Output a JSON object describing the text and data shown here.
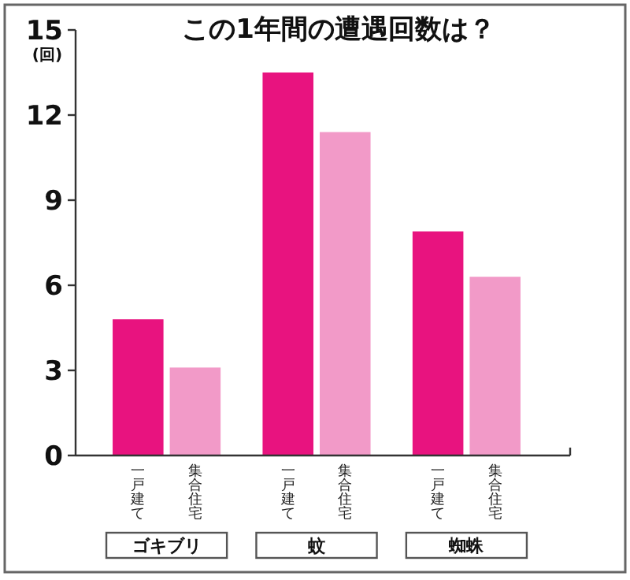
{
  "chart_data": {
    "type": "bar",
    "title": "この1年間の遭遇回数は？",
    "ylabel": "(回)",
    "categories": [
      "ゴキブリ",
      "蚊",
      "蜘蛛"
    ],
    "series": [
      {
        "name": "一戸建て",
        "color": "#e8137f",
        "values": [
          4.8,
          13.5,
          7.9
        ]
      },
      {
        "name": "集合住宅",
        "color": "#f29ac8",
        "values": [
          3.1,
          11.4,
          6.3
        ]
      }
    ],
    "ylim": [
      0,
      15
    ],
    "yticks": [
      0,
      3,
      6,
      9,
      12,
      15
    ],
    "grid": false,
    "legend": false
  }
}
